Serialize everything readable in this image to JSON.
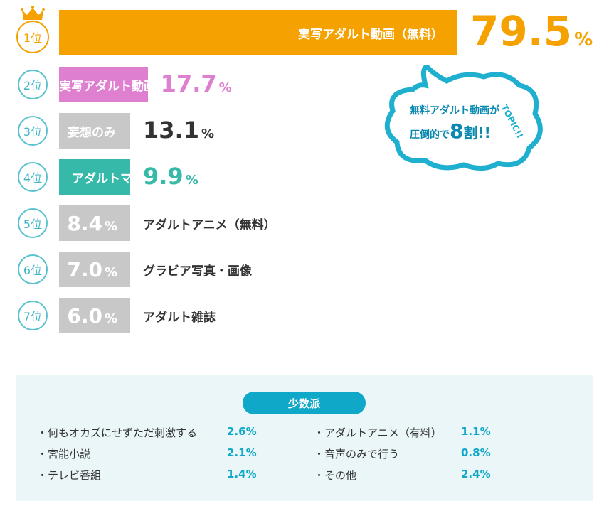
{
  "chart_data": {
    "type": "bar",
    "orientation": "horizontal",
    "categories": [
      "実写アダルト動画（無料）",
      "実写アダルト動画（有料）",
      "妄想のみ",
      "アダルトマンガ",
      "アダルトアニメ（無料）",
      "グラビア写真・画像",
      "アダルト雑誌"
    ],
    "ranks": [
      "1位",
      "2位",
      "3位",
      "4位",
      "5位",
      "6位",
      "7位"
    ],
    "values": [
      79.5,
      17.7,
      13.1,
      9.9,
      8.4,
      7.0,
      6.0
    ],
    "value_labels": [
      "79.5",
      "17.7",
      "13.1",
      "9.9",
      "8.4",
      "7.0",
      "6.0"
    ],
    "unit": "%",
    "colors": [
      "#f5a200",
      "#de7fd0",
      "#c8c8c8",
      "#36b9a9",
      "#c8c8c8",
      "#c8c8c8",
      "#c8c8c8"
    ],
    "value_colors": [
      "#f5a200",
      "#de7fd0",
      "#333333",
      "#36b9a9",
      "#ffffff",
      "#ffffff",
      "#ffffff"
    ]
  },
  "callout": {
    "line1": "無料アダルト動画が",
    "line2_prefix": "圧倒的で",
    "line2_big": "8",
    "line2_suffix": "割!!",
    "tag": "TOPIC!!"
  },
  "minority": {
    "title": "少数派",
    "items": [
      {
        "label": "・何もオカズにせずただ刺激する",
        "value": "2.6%"
      },
      {
        "label": "・宮能小説",
        "value": "2.1%"
      },
      {
        "label": "・テレビ番組",
        "value": "1.4%"
      },
      {
        "label": "・アダルトアニメ（有料）",
        "value": "1.1%"
      },
      {
        "label": "・音声のみで行う",
        "value": "0.8%"
      },
      {
        "label": "・その他",
        "value": "2.4%"
      }
    ]
  }
}
